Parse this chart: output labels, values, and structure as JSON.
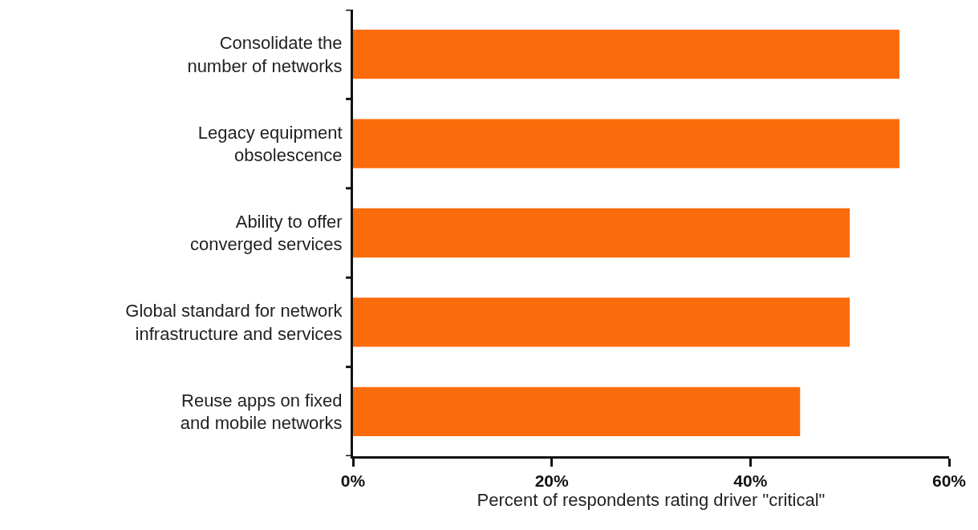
{
  "chart_data": {
    "type": "bar",
    "orientation": "horizontal",
    "categories": [
      "Consolidate the number of networks",
      "Legacy equipment obsolescence",
      "Ability to offer converged services",
      "Global standard for network infrastructure and services",
      "Reuse apps on fixed and mobile networks"
    ],
    "values": [
      55,
      55,
      50,
      50,
      45
    ],
    "color": "#fa6b0c",
    "xlim": [
      0,
      60
    ],
    "xticks": [
      {
        "value": 0,
        "label": "0%"
      },
      {
        "value": 20,
        "label": "20%"
      },
      {
        "value": 40,
        "label": "40%"
      },
      {
        "value": 60,
        "label": "60%"
      }
    ],
    "xlabel": "Percent of respondents rating driver \"critical\"",
    "grid": false
  }
}
